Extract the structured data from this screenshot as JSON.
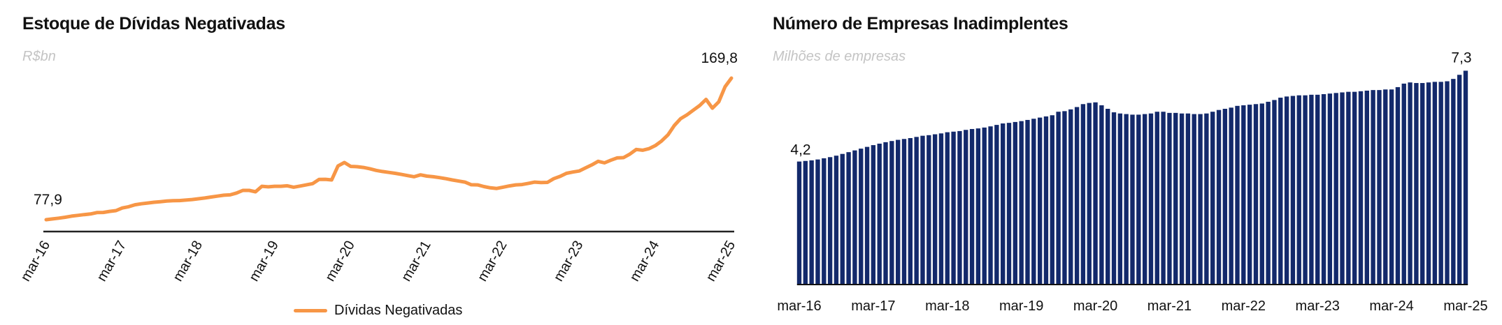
{
  "colors": {
    "line": "#f79646",
    "bars": "#13296b",
    "axis": "#222222"
  },
  "chart_data": [
    {
      "type": "line",
      "title": "Estoque de Dívidas Negativadas",
      "ylabel": "R$bn",
      "xlabel": "",
      "x_start": "mar-16",
      "x_end": "mar-25",
      "frequency": "monthly",
      "tick_labels": [
        "mar-16",
        "mar-17",
        "mar-18",
        "mar-19",
        "mar-20",
        "mar-21",
        "mar-22",
        "mar-23",
        "mar-24",
        "mar-25"
      ],
      "legend": [
        "Dívidas Negativadas"
      ],
      "legend_position": "bottom-center",
      "grid": false,
      "first_label": "77,9",
      "last_label": "169,8",
      "series": [
        {
          "name": "Dívidas Negativadas",
          "values": [
            77.9,
            78.4,
            78.9,
            79.5,
            80.2,
            80.7,
            81.2,
            81.6,
            82.5,
            82.6,
            83.3,
            83.8,
            85.5,
            86.3,
            87.6,
            88.2,
            88.7,
            89.2,
            89.6,
            90.0,
            90.2,
            90.3,
            90.6,
            91.0,
            91.5,
            92.0,
            92.6,
            93.2,
            93.8,
            94.0,
            95.2,
            96.9,
            96.9,
            96.0,
            99.6,
            99.2,
            99.6,
            99.6,
            99.9,
            99.0,
            99.7,
            100.5,
            101.3,
            104.0,
            104.1,
            103.7,
            112.8,
            115.0,
            112.5,
            112.3,
            111.8,
            111.0,
            109.9,
            109.2,
            108.6,
            108.0,
            107.3,
            106.5,
            105.8,
            107.0,
            106.2,
            105.8,
            105.2,
            104.5,
            103.7,
            103.0,
            102.3,
            100.6,
            100.5,
            99.4,
            98.6,
            98.2,
            99.0,
            99.8,
            100.5,
            100.7,
            101.5,
            102.3,
            102.0,
            102.1,
            104.5,
            106.0,
            108.0,
            108.8,
            109.5,
            111.5,
            113.5,
            115.8,
            114.8,
            116.5,
            118.0,
            118.2,
            120.5,
            123.5,
            123.0,
            124.0,
            126.0,
            129.0,
            133.0,
            139.0,
            143.5,
            146.0,
            149.0,
            152.0,
            156.0,
            150.3,
            154.4,
            164.2,
            169.8
          ]
        }
      ]
    },
    {
      "type": "bar",
      "title": "Número de Empresas Inadimplentes",
      "ylabel": "Milhões de empresas",
      "xlabel": "",
      "x_start": "mar-16",
      "x_end": "mar-25",
      "frequency": "monthly",
      "ylim": [
        0,
        7.5
      ],
      "tick_labels": [
        "mar-16",
        "mar-17",
        "mar-18",
        "mar-19",
        "mar-20",
        "mar-21",
        "mar-22",
        "mar-23",
        "mar-24",
        "mar-25"
      ],
      "grid": false,
      "first_label": "4,2",
      "last_label": "7,3",
      "series": [
        {
          "name": "Empresas Inadimplentes",
          "values": [
            4.2,
            4.22,
            4.24,
            4.27,
            4.31,
            4.35,
            4.4,
            4.46,
            4.52,
            4.58,
            4.64,
            4.7,
            4.76,
            4.81,
            4.86,
            4.9,
            4.94,
            4.97,
            5.0,
            5.04,
            5.08,
            5.1,
            5.13,
            5.16,
            5.2,
            5.22,
            5.24,
            5.28,
            5.31,
            5.33,
            5.36,
            5.4,
            5.45,
            5.5,
            5.52,
            5.55,
            5.58,
            5.62,
            5.66,
            5.7,
            5.74,
            5.78,
            5.9,
            5.92,
            5.98,
            6.06,
            6.16,
            6.2,
            6.22,
            6.12,
            6.0,
            5.88,
            5.84,
            5.82,
            5.8,
            5.8,
            5.82,
            5.84,
            5.9,
            5.9,
            5.86,
            5.86,
            5.84,
            5.84,
            5.82,
            5.82,
            5.84,
            5.9,
            5.96,
            6.0,
            6.04,
            6.1,
            6.12,
            6.14,
            6.16,
            6.18,
            6.24,
            6.3,
            6.38,
            6.42,
            6.44,
            6.46,
            6.46,
            6.48,
            6.48,
            6.5,
            6.52,
            6.54,
            6.56,
            6.58,
            6.58,
            6.6,
            6.62,
            6.64,
            6.64,
            6.66,
            6.66,
            6.74,
            6.86,
            6.9,
            6.88,
            6.88,
            6.9,
            6.92,
            6.92,
            6.94,
            7.02,
            7.16,
            7.3
          ]
        }
      ]
    }
  ]
}
